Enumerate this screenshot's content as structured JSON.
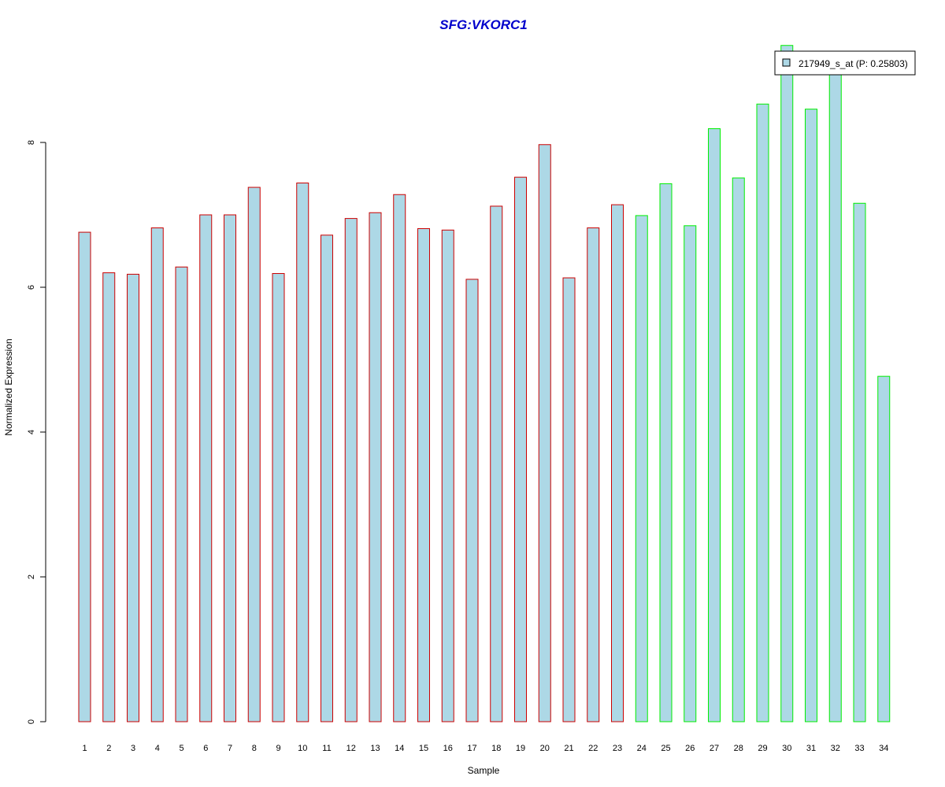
{
  "chart_data": {
    "type": "bar",
    "title": "SFG:VKORC1",
    "xlabel": "Sample",
    "ylabel": "Normalized Expression",
    "categories": [
      "1",
      "2",
      "3",
      "4",
      "5",
      "6",
      "7",
      "8",
      "9",
      "10",
      "11",
      "12",
      "13",
      "14",
      "15",
      "16",
      "17",
      "18",
      "19",
      "20",
      "21",
      "22",
      "23",
      "24",
      "25",
      "26",
      "27",
      "28",
      "29",
      "30",
      "31",
      "32",
      "33",
      "34"
    ],
    "values": [
      6.76,
      6.2,
      6.18,
      6.82,
      6.28,
      7.0,
      7.0,
      7.38,
      6.19,
      7.44,
      6.72,
      6.95,
      7.03,
      7.28,
      6.81,
      6.79,
      6.11,
      7.12,
      7.52,
      7.97,
      6.13,
      6.82,
      7.14,
      6.99,
      7.43,
      6.85,
      8.19,
      7.51,
      8.53,
      9.34,
      8.46,
      9.0,
      7.16,
      4.77
    ],
    "groups": [
      1,
      1,
      1,
      1,
      1,
      1,
      1,
      1,
      1,
      1,
      1,
      1,
      1,
      1,
      1,
      1,
      1,
      1,
      1,
      1,
      1,
      1,
      1,
      2,
      2,
      2,
      2,
      2,
      2,
      2,
      2,
      2,
      2,
      2
    ],
    "yticks": [
      0,
      2,
      4,
      6,
      8
    ],
    "ylim": [
      0,
      9.35
    ],
    "grid": false,
    "legend": {
      "label": "217949_s_at (P: 0.25803)",
      "position": "top-right"
    },
    "colors": {
      "bar_fill": "#add8e6",
      "group1_border": "#cc0000",
      "group2_border": "#00ee00",
      "title": "#0000cc",
      "axis": "#000000"
    }
  }
}
